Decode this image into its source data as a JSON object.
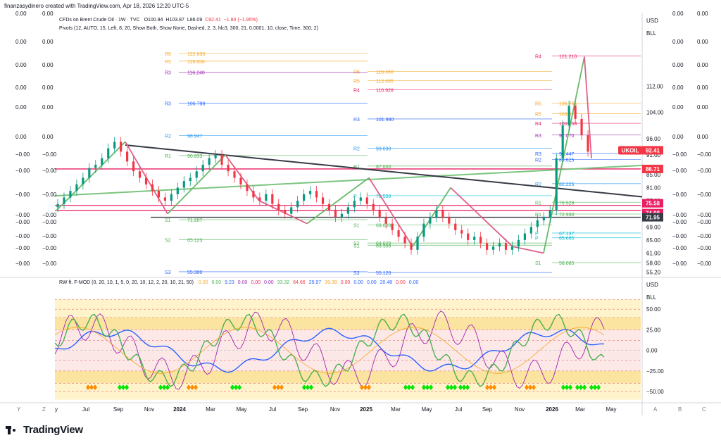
{
  "header": {
    "credit": "finanzasydinero created with TradingView.com, Apr 18, 2026 12:20 UTC-5",
    "symbol_line": "CFDs on Brent Crude Oil · 1W · TVC",
    "ohlc": {
      "o": "O100.94",
      "h": "H103.87",
      "l": "L86.09",
      "c": "C92.41",
      "chg": "−1.84 (−1.95%)"
    },
    "pivots_legend": "Pivots (12, AUTO, 15, Left, 8, 20, Show Both, Show None, Dashed, 2, 3, hlc3, 300, 21, 0.0001, 10, close, Time, 300, 2)"
  },
  "indicator": {
    "legend": "RW ft. F-MOD (0, 20, 10, 1, 5, 0, 20, 10, 12, 2, 20, 10, 21, 50)",
    "values": [
      {
        "v": "0.00",
        "c": "#f5a623"
      },
      {
        "v": "0.00",
        "c": "#4caf50"
      },
      {
        "v": "9.23",
        "c": "#2962ff"
      },
      {
        "v": "0.00",
        "c": "#9c27b0"
      },
      {
        "v": "0.00",
        "c": "#e91e63"
      },
      {
        "v": "0.00",
        "c": "#9c27b0"
      },
      {
        "v": "33.32",
        "c": "#4caf50"
      },
      {
        "v": "64.66",
        "c": "#f23645"
      },
      {
        "v": "29.97",
        "c": "#2962ff"
      },
      {
        "v": "39.38",
        "c": "#f5a623"
      },
      {
        "v": "0.00",
        "c": "#f23645"
      },
      {
        "v": "0.00",
        "c": "#2962ff"
      },
      {
        "v": "0.00",
        "c": "#2962ff"
      },
      {
        "v": "20.48",
        "c": "#2962ff"
      },
      {
        "v": "0.00",
        "c": "#f23645"
      },
      {
        "v": "0.00",
        "c": "#2962ff"
      }
    ]
  },
  "chart_data": {
    "type": "candlestick",
    "symbol": "UKOIL",
    "currency": "USD",
    "unit": "BLL",
    "interval": "1W",
    "price_scale": {
      "ticks": [
        "112.00",
        "104.00",
        "96.00",
        "91.00",
        "85.00",
        "81.00",
        "77.00",
        "73.00",
        "69.00",
        "65.00",
        "61.00",
        "58.00",
        "55.20"
      ],
      "range": [
        54,
        128
      ]
    },
    "osc_scale": {
      "ticks": [
        "50.00",
        "25.00",
        "0.00",
        "−25.00",
        "−50.00"
      ],
      "range": [
        -62,
        75
      ]
    },
    "time_labels": [
      "y",
      "Jul",
      "Sep",
      "Nov",
      "2024",
      "Mar",
      "May",
      "Jul",
      "Sep",
      "Nov",
      "2025",
      "Mar",
      "May",
      "Jul",
      "Sep",
      "Nov",
      "2026",
      "Mar",
      "May"
    ],
    "bold_time_labels": [
      "2024",
      "2025",
      "2026"
    ],
    "price_badges": [
      {
        "label": "UKOIL",
        "value": "92.41",
        "color": "#f23645"
      },
      {
        "value": "86.71",
        "color": "#f23645"
      },
      {
        "value": "75.58",
        "color": "#e91e63"
      },
      {
        "value": "74.08",
        "color": "#e91e63"
      },
      {
        "value": "71.95",
        "color": "#363a45"
      }
    ],
    "left_scale_labels": [
      "0.00",
      "0.00",
      "0.00",
      "0.00",
      "0.00",
      "0.00",
      "−0.00",
      "−0.00",
      "−0.00",
      "−0.00",
      "−0.00",
      "−0.00",
      "−0.00",
      "−0.00",
      "−0.00",
      "−0.00"
    ],
    "right_scale_labels": [
      "0.00",
      "0.00",
      "0.00",
      "0.00",
      "0.00",
      "0.00",
      "−0.00",
      "−0.00",
      "−0.00",
      "−0.00",
      "−0.00",
      "−0.00",
      "−0.00",
      "−0.00",
      "−0.00",
      "−0.00"
    ],
    "pivot_levels": [
      {
        "label": "R4",
        "value": "121.210",
        "color": "#e91e63"
      },
      {
        "label": "R6",
        "value": "106.765",
        "color": "#f5a623"
      },
      {
        "label": "R5",
        "value": "103.627",
        "color": "#f5a623"
      },
      {
        "label": "R4",
        "value": "100.658",
        "color": "#e91e63"
      },
      {
        "label": "R3",
        "value": "97.070",
        "color": "#9c27b0"
      },
      {
        "label": "R3",
        "value": "91.447",
        "color": "#2962ff"
      },
      {
        "label": "R2",
        "value": "89.625",
        "color": "#2962ff"
      },
      {
        "label": "R2",
        "value": "82.225",
        "color": "#2196f3"
      },
      {
        "label": "R1",
        "value": "76.528",
        "color": "#4caf50"
      },
      {
        "label": "R1",
        "value": "72.930",
        "color": "#4caf50"
      },
      {
        "label": "P",
        "value": "67.137",
        "color": "#00bcd4"
      },
      {
        "label": "P",
        "value": "65.685",
        "color": "#00bcd4"
      },
      {
        "label": "S1",
        "value": "58.085",
        "color": "#4caf50"
      },
      {
        "label": "R6",
        "value": "116.460",
        "color": "#f5a623"
      },
      {
        "label": "R5",
        "value": "113.695",
        "color": "#f5a623"
      },
      {
        "label": "R4",
        "value": "110.928",
        "color": "#e91e63"
      },
      {
        "label": "R3",
        "value": "101.980",
        "color": "#2962ff"
      },
      {
        "label": "R2",
        "value": "93.030",
        "color": "#2196f3"
      },
      {
        "label": "R1",
        "value": "87.600",
        "color": "#4caf50"
      },
      {
        "label": "P",
        "value": "78.550",
        "color": "#00bcd4"
      },
      {
        "label": "S1",
        "value": "69.600",
        "color": "#4caf50"
      },
      {
        "label": "S2",
        "value": "64.070",
        "color": "#4caf50"
      },
      {
        "label": "S1",
        "value": "63.395",
        "color": "#4caf50"
      },
      {
        "label": "S3",
        "value": "55.120",
        "color": "#2962ff"
      },
      {
        "label": "R6",
        "value": "122.030",
        "color": "#f5a623"
      },
      {
        "label": "R5",
        "value": "119.650",
        "color": "#f5a623"
      },
      {
        "label": "R3",
        "value": "116.240",
        "color": "#9c27b0"
      },
      {
        "label": "R3",
        "value": "106.798",
        "color": "#2962ff"
      },
      {
        "label": "R2",
        "value": "96.947",
        "color": "#2196f3"
      },
      {
        "label": "R1",
        "value": "90.833",
        "color": "#4caf50"
      },
      {
        "label": "S1",
        "value": "71.207",
        "color": "#4caf50"
      },
      {
        "label": "S2",
        "value": "65.123",
        "color": "#4caf50"
      },
      {
        "label": "S3",
        "value": "55.300",
        "color": "#2962ff"
      }
    ],
    "candles_approx_close": [
      76,
      78,
      80,
      82,
      84,
      87,
      88,
      90,
      93,
      95,
      92,
      89,
      86,
      84,
      82,
      80,
      78,
      77,
      79,
      81,
      83,
      84,
      86,
      88,
      90,
      91,
      88,
      86,
      84,
      82,
      80,
      78,
      77,
      79,
      76,
      74,
      73,
      75,
      77,
      79,
      80,
      78,
      76,
      74,
      72,
      73,
      75,
      77,
      78,
      76,
      74,
      72,
      70,
      68,
      66,
      64,
      62,
      66,
      70,
      72,
      74,
      72,
      70,
      68,
      67,
      65,
      66,
      64,
      62,
      63,
      64,
      62,
      63,
      65,
      67,
      69,
      71,
      72,
      74,
      90,
      100,
      106,
      102,
      97,
      92
    ]
  }
}
